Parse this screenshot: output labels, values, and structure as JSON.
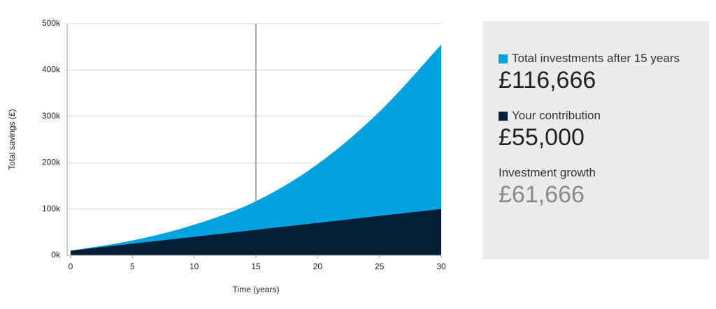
{
  "chart_data": {
    "type": "area",
    "x": [
      0,
      5,
      10,
      15,
      20,
      25,
      30
    ],
    "series": [
      {
        "name": "Total investments after 15 years",
        "color": "#00a3e0",
        "values": [
          10000,
          32000,
          66000,
          116666,
          197000,
          310000,
          455000
        ]
      },
      {
        "name": "Your contribution",
        "color": "#041e36",
        "values": [
          10000,
          25000,
          40000,
          55000,
          70000,
          85000,
          100000
        ]
      }
    ],
    "xlabel": "Time (years)",
    "ylabel": "Total savings (£)",
    "xlim": [
      0,
      30
    ],
    "xticks": [
      0,
      5,
      10,
      15,
      20,
      25,
      30
    ],
    "ylim": [
      0,
      500000
    ],
    "yticks": [
      {
        "value": 0,
        "label": "0k"
      },
      {
        "value": 100000,
        "label": "100k"
      },
      {
        "value": 200000,
        "label": "200k"
      },
      {
        "value": 300000,
        "label": "300k"
      },
      {
        "value": 400000,
        "label": "400k"
      },
      {
        "value": 500000,
        "label": "500k"
      }
    ],
    "grid": true,
    "marker_x": 15
  },
  "panel": {
    "total_value": "£116,666",
    "contribution_value": "£55,000",
    "growth_label": "Investment growth",
    "growth_value": "£61,666"
  }
}
